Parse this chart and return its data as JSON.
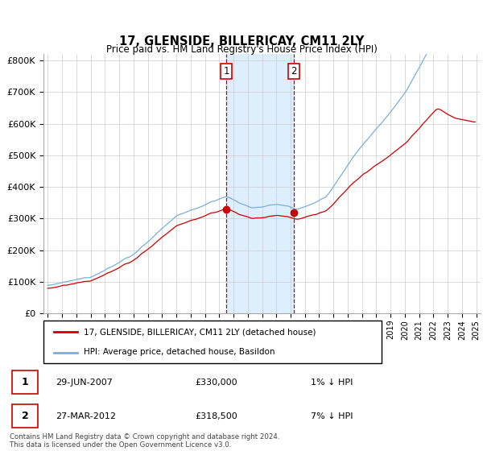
{
  "title": "17, GLENSIDE, BILLERICAY, CM11 2LY",
  "subtitle": "Price paid vs. HM Land Registry's House Price Index (HPI)",
  "yticks": [
    0,
    100000,
    200000,
    300000,
    400000,
    500000,
    600000,
    700000,
    800000
  ],
  "ytick_labels": [
    "£0",
    "£100K",
    "£200K",
    "£300K",
    "£400K",
    "£500K",
    "£600K",
    "£700K",
    "£800K"
  ],
  "ylim": [
    0,
    820000
  ],
  "sale1_date": 2007.5,
  "sale1_price": 330000,
  "sale1_label": "1",
  "sale2_date": 2012.23,
  "sale2_price": 318500,
  "sale2_label": "2",
  "shade_x1": 2007.5,
  "shade_x2": 2012.23,
  "line_color_red": "#cc0000",
  "line_color_blue": "#7aafda",
  "shade_color": "#ddeeff",
  "grid_color": "#cccccc",
  "legend_line1": "17, GLENSIDE, BILLERICAY, CM11 2LY (detached house)",
  "legend_line2": "HPI: Average price, detached house, Basildon",
  "table_row1": [
    "1",
    "29-JUN-2007",
    "£330,000",
    "1% ↓ HPI"
  ],
  "table_row2": [
    "2",
    "27-MAR-2012",
    "£318,500",
    "7% ↓ HPI"
  ],
  "footnote": "Contains HM Land Registry data © Crown copyright and database right 2024.\nThis data is licensed under the Open Government Licence v3.0.",
  "xlim_start": 1994.7,
  "xlim_end": 2025.3
}
